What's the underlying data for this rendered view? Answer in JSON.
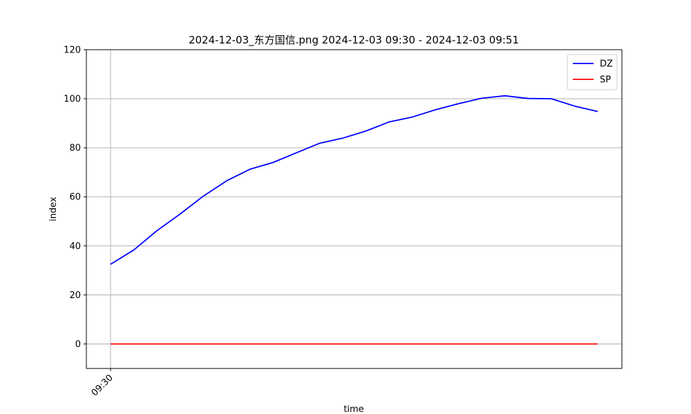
{
  "chart_data": {
    "type": "line",
    "title": "2024-12-03_东方国信.png 2024-12-03 09:30 - 2024-12-03 09:51",
    "xlabel": "time",
    "ylabel": "index",
    "x": [
      "09:30",
      "09:31",
      "09:32",
      "09:33",
      "09:34",
      "09:35",
      "09:36",
      "09:37",
      "09:38",
      "09:39",
      "09:40",
      "09:41",
      "09:42",
      "09:43",
      "09:44",
      "09:45",
      "09:46",
      "09:47",
      "09:48",
      "09:49",
      "09:50",
      "09:51"
    ],
    "x_tick_labels": [
      "09:30"
    ],
    "ylim": [
      -10,
      120
    ],
    "y_ticks": [
      0,
      20,
      40,
      60,
      80,
      100,
      120
    ],
    "grid": true,
    "legend_position": "top-right",
    "series": [
      {
        "name": "DZ",
        "color": "#0000ff",
        "values": [
          32.5,
          38.3,
          46.2,
          53.0,
          60.3,
          66.5,
          71.2,
          74.0,
          77.9,
          81.8,
          83.9,
          86.8,
          90.5,
          92.5,
          95.5,
          98.0,
          100.2,
          101.2,
          100.1,
          100.0,
          97.0,
          94.8
        ]
      },
      {
        "name": "SP",
        "color": "#ff0000",
        "values": [
          0,
          0,
          0,
          0,
          0,
          0,
          0,
          0,
          0,
          0,
          0,
          0,
          0,
          0,
          0,
          0,
          0,
          0,
          0,
          0,
          0,
          0
        ]
      }
    ]
  }
}
